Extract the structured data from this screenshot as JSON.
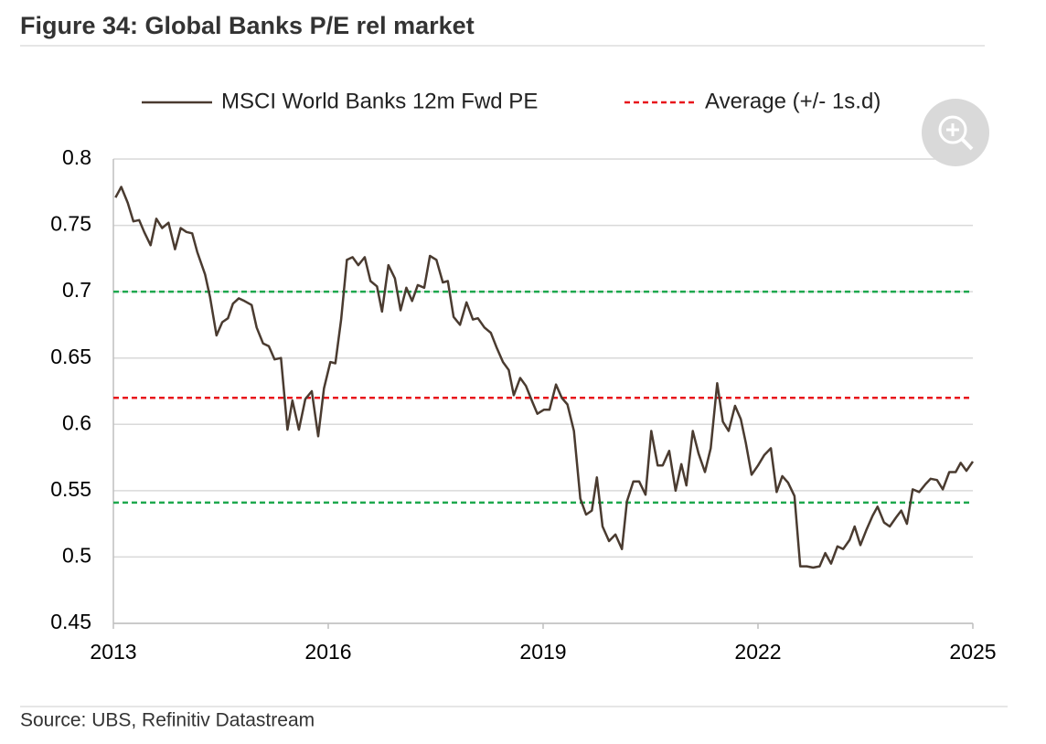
{
  "chart_data": {
    "type": "line",
    "title": "Figure 34: Global Banks P/E rel market",
    "source": "Source: UBS, Refinitiv Datastream",
    "xlim": [
      2013,
      2025
    ],
    "xticks": [
      2013,
      2016,
      2019,
      2022,
      2025
    ],
    "ylim": [
      0.45,
      0.8
    ],
    "yticks": [
      0.45,
      0.5,
      0.55,
      0.6,
      0.65,
      0.7,
      0.75,
      0.8
    ],
    "grid": true,
    "series": [
      {
        "name": "MSCI World Banks 12m Fwd PE",
        "color": "#4a3b30",
        "x": [
          2013.03,
          2013.11,
          2013.2,
          2013.28,
          2013.36,
          2013.43,
          2013.52,
          2013.6,
          2013.68,
          2013.77,
          2013.86,
          2013.94,
          2014.02,
          2014.1,
          2014.17,
          2014.28,
          2014.35,
          2014.44,
          2014.52,
          2014.6,
          2014.67,
          2014.75,
          2014.83,
          2014.93,
          2015.0,
          2015.09,
          2015.17,
          2015.25,
          2015.34,
          2015.43,
          2015.5,
          2015.59,
          2015.68,
          2015.77,
          2015.86,
          2015.94,
          2016.03,
          2016.1,
          2016.18,
          2016.26,
          2016.34,
          2016.42,
          2016.51,
          2016.59,
          2016.68,
          2016.75,
          2016.84,
          2016.93,
          2017.01,
          2017.09,
          2017.17,
          2017.25,
          2017.34,
          2017.42,
          2017.51,
          2017.6,
          2017.67,
          2017.75,
          2017.84,
          2017.93,
          2018.02,
          2018.09,
          2018.18,
          2018.27,
          2018.35,
          2018.44,
          2018.52,
          2018.59,
          2018.68,
          2018.76,
          2018.85,
          2018.92,
          2019.01,
          2019.09,
          2019.18,
          2019.26,
          2019.34,
          2019.43,
          2019.52,
          2019.6,
          2019.68,
          2019.75,
          2019.83,
          2019.92,
          2020.01,
          2020.1,
          2020.17,
          2020.26,
          2020.34,
          2020.43,
          2020.51,
          2020.6,
          2020.67,
          2020.76,
          2020.85,
          2020.93,
          2021.0,
          2021.09,
          2021.17,
          2021.26,
          2021.34,
          2021.43,
          2021.51,
          2021.59,
          2021.68,
          2021.76,
          2021.83,
          2021.91,
          2022.0,
          2022.09,
          2022.18,
          2022.26,
          2022.34,
          2022.42,
          2022.51,
          2022.59,
          2022.68,
          2022.77,
          2022.86,
          2022.94,
          2023.02,
          2023.11,
          2023.19,
          2023.28,
          2023.35,
          2023.43,
          2023.51,
          2023.6,
          2023.67,
          2023.76,
          2023.84,
          2023.93,
          2024.0,
          2024.08,
          2024.16,
          2024.25,
          2024.34,
          2024.41,
          2024.5,
          2024.58,
          2024.67,
          2024.76,
          2024.83,
          2024.91,
          2025.0
        ],
        "values": [
          0.771,
          0.779,
          0.767,
          0.753,
          0.754,
          0.745,
          0.735,
          0.755,
          0.748,
          0.752,
          0.732,
          0.748,
          0.745,
          0.744,
          0.73,
          0.713,
          0.696,
          0.667,
          0.677,
          0.68,
          0.691,
          0.695,
          0.693,
          0.69,
          0.673,
          0.661,
          0.659,
          0.649,
          0.65,
          0.596,
          0.618,
          0.596,
          0.619,
          0.625,
          0.591,
          0.627,
          0.647,
          0.646,
          0.679,
          0.724,
          0.726,
          0.72,
          0.726,
          0.708,
          0.704,
          0.685,
          0.72,
          0.71,
          0.686,
          0.703,
          0.693,
          0.705,
          0.703,
          0.727,
          0.724,
          0.707,
          0.708,
          0.681,
          0.675,
          0.692,
          0.679,
          0.68,
          0.673,
          0.669,
          0.658,
          0.647,
          0.641,
          0.622,
          0.635,
          0.629,
          0.617,
          0.608,
          0.611,
          0.611,
          0.63,
          0.62,
          0.615,
          0.595,
          0.544,
          0.532,
          0.535,
          0.56,
          0.523,
          0.512,
          0.517,
          0.506,
          0.542,
          0.557,
          0.557,
          0.547,
          0.595,
          0.569,
          0.569,
          0.58,
          0.55,
          0.57,
          0.554,
          0.595,
          0.578,
          0.564,
          0.582,
          0.631,
          0.602,
          0.595,
          0.614,
          0.604,
          0.586,
          0.562,
          0.569,
          0.577,
          0.582,
          0.549,
          0.561,
          0.556,
          0.546,
          0.493,
          0.493,
          0.492,
          0.493,
          0.503,
          0.495,
          0.508,
          0.506,
          0.513,
          0.523,
          0.509,
          0.52,
          0.531,
          0.538,
          0.526,
          0.523,
          0.53,
          0.535,
          0.525,
          0.551,
          0.549,
          0.555,
          0.559,
          0.558,
          0.551,
          0.564,
          0.564,
          0.571,
          0.565,
          0.572
        ]
      }
    ],
    "reference_lines": [
      {
        "name": "Average (+/- 1s.d)",
        "value": 0.62,
        "color": "#e8151b"
      },
      {
        "value": 0.7,
        "color": "#1ea84e"
      },
      {
        "value": 0.541,
        "color": "#1ea84e"
      }
    ]
  }
}
